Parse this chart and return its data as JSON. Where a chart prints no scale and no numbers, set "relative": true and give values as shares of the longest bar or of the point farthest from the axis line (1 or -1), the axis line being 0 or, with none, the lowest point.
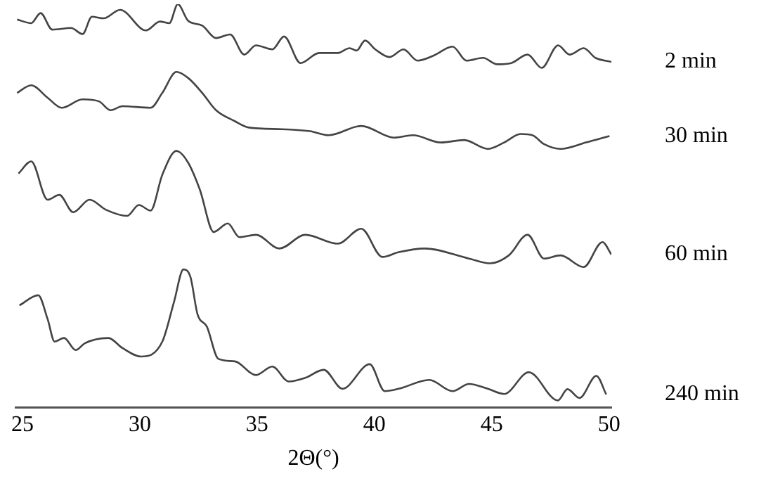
{
  "chart_data": {
    "type": "line",
    "xlabel": "2Θ(°)",
    "relative": true,
    "xlim": [
      24.7,
      50.1
    ],
    "xticks": [
      25,
      30,
      35,
      40,
      45,
      50
    ],
    "grid": false,
    "legend": false,
    "marker": "none",
    "line_style": "solid",
    "series": [
      {
        "name": "2 min",
        "color": "#444444",
        "x": [
          24.77,
          25.37,
          25.77,
          26.27,
          27.07,
          27.56,
          27.96,
          28.46,
          29.16,
          30.26,
          30.86,
          31.26,
          31.62,
          32.06,
          32.66,
          33.25,
          33.85,
          34.45,
          34.95,
          35.65,
          36.15,
          36.85,
          37.64,
          38.44,
          38.94,
          39.24,
          39.6,
          40.04,
          40.64,
          41.24,
          41.84,
          42.54,
          43.33,
          43.93,
          44.63,
          45.23,
          45.83,
          46.53,
          47.13,
          47.83,
          48.32,
          48.92,
          49.42,
          50.1
        ],
        "values": [
          0.962,
          0.953,
          0.978,
          0.937,
          0.941,
          0.926,
          0.969,
          0.965,
          0.986,
          0.935,
          0.957,
          0.953,
          1.0,
          0.959,
          0.947,
          0.916,
          0.925,
          0.875,
          0.898,
          0.888,
          0.92,
          0.854,
          0.879,
          0.879,
          0.891,
          0.885,
          0.91,
          0.888,
          0.869,
          0.888,
          0.86,
          0.873,
          0.895,
          0.86,
          0.867,
          0.851,
          0.854,
          0.875,
          0.842,
          0.898,
          0.875,
          0.891,
          0.867,
          0.857
        ]
      },
      {
        "name": "30 min",
        "color": "#444444",
        "x": [
          24.77,
          25.37,
          26.07,
          26.67,
          27.56,
          28.26,
          28.76,
          29.26,
          30.46,
          30.96,
          31.56,
          32.06,
          32.66,
          33.25,
          34.05,
          34.65,
          36.05,
          37.25,
          38.04,
          39.44,
          40.84,
          41.64,
          42.83,
          43.83,
          44.83,
          45.53,
          46.23,
          46.73,
          47.23,
          47.93,
          49.02,
          50.02
        ],
        "values": [
          0.78,
          0.799,
          0.768,
          0.743,
          0.764,
          0.759,
          0.737,
          0.747,
          0.743,
          0.78,
          0.832,
          0.817,
          0.78,
          0.737,
          0.71,
          0.694,
          0.69,
          0.685,
          0.675,
          0.698,
          0.669,
          0.675,
          0.657,
          0.663,
          0.641,
          0.657,
          0.678,
          0.675,
          0.653,
          0.641,
          0.657,
          0.673
        ]
      },
      {
        "name": "60 min",
        "color": "#444444",
        "x": [
          24.83,
          25.37,
          26.07,
          26.57,
          27.16,
          27.86,
          28.56,
          29.46,
          29.96,
          30.46,
          30.96,
          31.56,
          32.06,
          32.56,
          33.15,
          33.75,
          34.25,
          34.95,
          35.95,
          37.05,
          38.44,
          39.44,
          40.34,
          41.04,
          42.14,
          44.03,
          44.93,
          45.73,
          46.53,
          47.23,
          47.93,
          48.92,
          49.72,
          50.1
        ],
        "values": [
          0.58,
          0.61,
          0.515,
          0.527,
          0.484,
          0.515,
          0.49,
          0.475,
          0.502,
          0.488,
          0.577,
          0.636,
          0.607,
          0.54,
          0.435,
          0.456,
          0.422,
          0.428,
          0.394,
          0.428,
          0.406,
          0.443,
          0.373,
          0.385,
          0.394,
          0.369,
          0.357,
          0.377,
          0.428,
          0.369,
          0.377,
          0.348,
          0.41,
          0.379
        ]
      },
      {
        "name": "240 min",
        "color": "#444444",
        "x": [
          24.87,
          25.67,
          26.07,
          26.37,
          26.77,
          27.27,
          27.66,
          28.66,
          29.26,
          30.06,
          30.96,
          31.46,
          31.86,
          32.16,
          32.46,
          32.86,
          33.35,
          34.05,
          34.95,
          35.65,
          36.35,
          37.05,
          37.84,
          38.64,
          39.8,
          40.44,
          41.04,
          42.34,
          43.33,
          44.03,
          44.83,
          45.53,
          46.58,
          47.82,
          48.23,
          48.74,
          49.46,
          49.88
        ],
        "values": [
          0.253,
          0.278,
          0.219,
          0.163,
          0.172,
          0.142,
          0.159,
          0.172,
          0.147,
          0.126,
          0.163,
          0.262,
          0.342,
          0.323,
          0.231,
          0.2,
          0.12,
          0.114,
          0.08,
          0.101,
          0.064,
          0.073,
          0.093,
          0.046,
          0.107,
          0.04,
          0.046,
          0.068,
          0.04,
          0.058,
          0.046,
          0.033,
          0.087,
          0.017,
          0.045,
          0.023,
          0.078,
          0.032
        ]
      }
    ]
  }
}
